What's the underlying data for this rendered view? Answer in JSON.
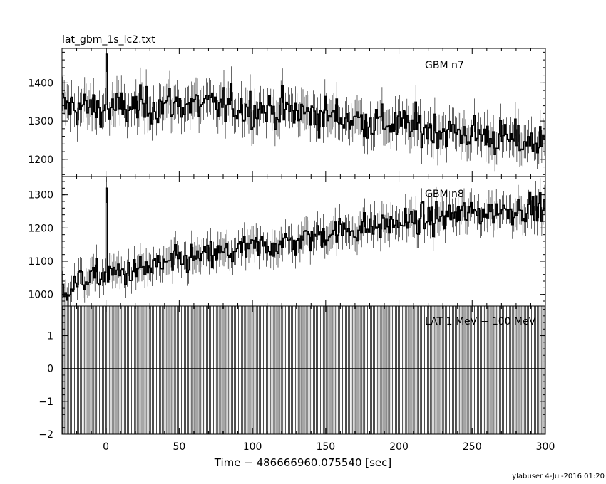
{
  "chart_data": {
    "type": "line",
    "title": "lat_gbm_1s_lc2.txt",
    "xlabel": "Time − 486666960.075540 [sec]",
    "xlim": [
      -30,
      300
    ],
    "xticks": [
      0,
      50,
      100,
      150,
      200,
      250,
      300
    ],
    "footer": "ylabuser   4-Jul-2016 01:20",
    "panels": [
      {
        "label": "GBM n7",
        "ylim": [
          1155,
          1490
        ],
        "yticks": [
          1200,
          1300,
          1400
        ],
        "series": {
          "x": [
            -30,
            0,
            50,
            100,
            150,
            200,
            250,
            300
          ],
          "y": [
            1340,
            1330,
            1345,
            1335,
            1315,
            1290,
            1265,
            1240
          ]
        },
        "scatter": 42,
        "spike": {
          "x": 0,
          "y": 1475
        }
      },
      {
        "label": "GBM n8",
        "ylim": [
          965,
          1355
        ],
        "yticks": [
          1000,
          1100,
          1200,
          1300
        ],
        "series": {
          "x": [
            -30,
            -15,
            0,
            20,
            50,
            100,
            130,
            150,
            200,
            250,
            300
          ],
          "y": [
            1010,
            1045,
            1060,
            1070,
            1100,
            1140,
            1160,
            1185,
            1215,
            1245,
            1265
          ]
        },
        "scatter": 38,
        "spike": {
          "x": 0,
          "y": 1320
        }
      },
      {
        "label": "LAT 1 MeV − 100 MeV",
        "ylim": [
          -2,
          1.9
        ],
        "yticks": [
          -2,
          -1,
          0,
          1
        ],
        "series": {
          "x": [
            -30,
            300
          ],
          "y": [
            0,
            0
          ]
        },
        "errorbars": "full"
      }
    ]
  }
}
